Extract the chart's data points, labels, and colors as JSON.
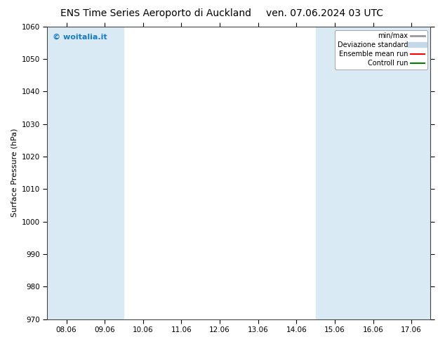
{
  "title_left": "ENS Time Series Aeroporto di Auckland",
  "title_right": "ven. 07.06.2024 03 UTC",
  "ylabel": "Surface Pressure (hPa)",
  "ylim": [
    970,
    1060
  ],
  "yticks": [
    970,
    980,
    990,
    1000,
    1010,
    1020,
    1030,
    1040,
    1050,
    1060
  ],
  "x_labels": [
    "08.06",
    "09.06",
    "10.06",
    "11.06",
    "12.06",
    "13.06",
    "14.06",
    "15.06",
    "16.06",
    "17.06"
  ],
  "x_values": [
    0,
    1,
    2,
    3,
    4,
    5,
    6,
    7,
    8,
    9
  ],
  "shaded_band_indices": [
    0,
    1,
    7,
    8,
    9
  ],
  "shaded_color": "#daeaf5",
  "watermark_text": "© woitalia.it",
  "watermark_color": "#1a7abf",
  "legend_items": [
    {
      "label": "min/max",
      "color": "#999999",
      "lw": 2,
      "style": "solid"
    },
    {
      "label": "Deviazione standard",
      "color": "#c5d8e8",
      "lw": 6,
      "style": "solid"
    },
    {
      "label": "Ensemble mean run",
      "color": "red",
      "lw": 1.5,
      "style": "solid"
    },
    {
      "label": "Controll run",
      "color": "green",
      "lw": 1.5,
      "style": "solid"
    }
  ],
  "bg_color": "#ffffff",
  "plot_bg_color": "#ffffff",
  "title_fontsize": 10,
  "tick_fontsize": 7.5,
  "ylabel_fontsize": 8
}
